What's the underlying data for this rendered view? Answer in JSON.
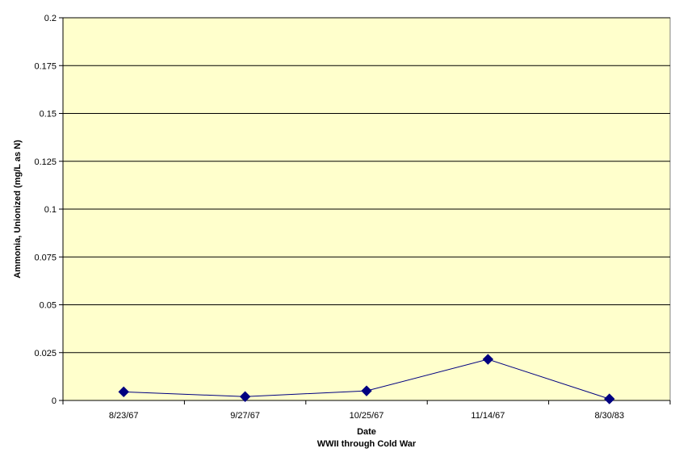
{
  "chart_data": {
    "type": "line",
    "title": "",
    "xlabel": "Date",
    "xlabel_sub": "WWII through Cold War",
    "ylabel": "Ammonia, Unionized (mg/L as N)",
    "categories": [
      "8/23/67",
      "9/27/67",
      "10/25/67",
      "11/14/67",
      "8/30/83"
    ],
    "series": [
      {
        "values": [
          0.0045,
          0.002,
          0.005,
          0.0215,
          0.0008
        ]
      }
    ],
    "ylim": [
      0,
      0.2
    ],
    "yticks": [
      "0",
      "0.025",
      "0.05",
      "0.075",
      "0.1",
      "0.125",
      "0.15",
      "0.175",
      "0.2"
    ],
    "grid": true,
    "colors": {
      "plot_bg": "#FFFFCC",
      "series": "#000080",
      "gridline": "#000000"
    }
  }
}
